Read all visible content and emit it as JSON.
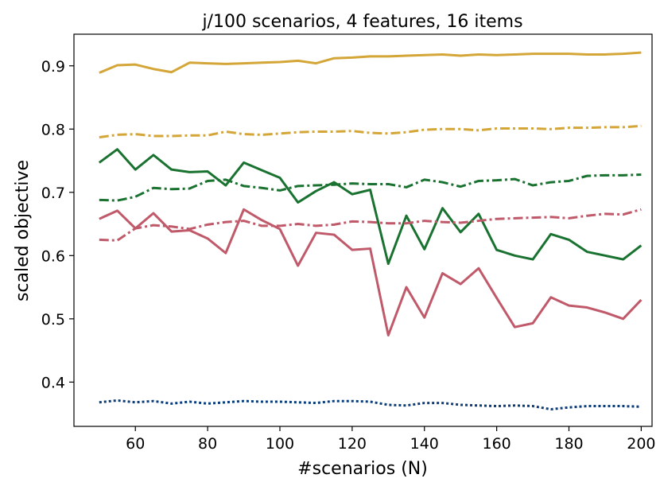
{
  "chart_data": {
    "type": "line",
    "title": "j/100 scenarios, 4 features, 16 items",
    "xlabel": "#scenarios (N)",
    "ylabel": "scaled objective",
    "xlim": [
      43,
      203
    ],
    "ylim": [
      0.33,
      0.95
    ],
    "xticks": [
      60,
      80,
      100,
      120,
      140,
      160,
      180,
      200
    ],
    "yticks": [
      0.4,
      0.5,
      0.6,
      0.7,
      0.8,
      0.9
    ],
    "grid": false,
    "x": [
      50,
      55,
      60,
      65,
      70,
      75,
      80,
      85,
      90,
      95,
      100,
      105,
      110,
      115,
      120,
      125,
      130,
      135,
      140,
      145,
      150,
      155,
      160,
      165,
      170,
      175,
      180,
      185,
      190,
      195,
      200
    ],
    "series": [
      {
        "color": "#d4a637",
        "style": "solid",
        "values": [
          0.889,
          0.901,
          0.902,
          0.895,
          0.89,
          0.905,
          0.904,
          0.903,
          0.904,
          0.905,
          0.906,
          0.908,
          0.904,
          0.912,
          0.913,
          0.915,
          0.915,
          0.916,
          0.917,
          0.918,
          0.916,
          0.918,
          0.917,
          0.918,
          0.919,
          0.919,
          0.919,
          0.918,
          0.918,
          0.919,
          0.921
        ]
      },
      {
        "color": "#d4a637",
        "style": "dashdot",
        "values": [
          0.787,
          0.791,
          0.792,
          0.789,
          0.789,
          0.79,
          0.79,
          0.796,
          0.792,
          0.791,
          0.793,
          0.795,
          0.796,
          0.796,
          0.797,
          0.794,
          0.793,
          0.795,
          0.799,
          0.8,
          0.8,
          0.798,
          0.801,
          0.801,
          0.801,
          0.8,
          0.802,
          0.802,
          0.803,
          0.803,
          0.805
        ]
      },
      {
        "color": "#1a7230",
        "style": "solid",
        "values": [
          0.747,
          0.768,
          0.736,
          0.759,
          0.736,
          0.732,
          0.733,
          0.711,
          0.747,
          0.735,
          0.723,
          0.684,
          0.702,
          0.716,
          0.697,
          0.704,
          0.587,
          0.663,
          0.61,
          0.675,
          0.637,
          0.666,
          0.609,
          0.6,
          0.594,
          0.634,
          0.625,
          0.606,
          0.6,
          0.594,
          0.616
        ]
      },
      {
        "color": "#1a7230",
        "style": "dashdot",
        "values": [
          0.688,
          0.687,
          0.693,
          0.707,
          0.705,
          0.706,
          0.718,
          0.72,
          0.71,
          0.707,
          0.703,
          0.71,
          0.711,
          0.712,
          0.714,
          0.713,
          0.713,
          0.708,
          0.72,
          0.716,
          0.709,
          0.718,
          0.719,
          0.721,
          0.711,
          0.716,
          0.718,
          0.726,
          0.727,
          0.727,
          0.728
        ]
      },
      {
        "color": "#c05a6a",
        "style": "solid",
        "values": [
          0.658,
          0.671,
          0.643,
          0.667,
          0.638,
          0.64,
          0.627,
          0.604,
          0.673,
          0.656,
          0.642,
          0.584,
          0.636,
          0.633,
          0.609,
          0.611,
          0.474,
          0.55,
          0.502,
          0.572,
          0.555,
          0.58,
          0.533,
          0.487,
          0.493,
          0.534,
          0.521,
          0.518,
          0.51,
          0.5,
          0.53
        ]
      },
      {
        "color": "#c05a6a",
        "style": "dashdot",
        "values": [
          0.625,
          0.624,
          0.643,
          0.648,
          0.646,
          0.642,
          0.649,
          0.653,
          0.655,
          0.647,
          0.647,
          0.65,
          0.647,
          0.649,
          0.654,
          0.653,
          0.651,
          0.651,
          0.655,
          0.653,
          0.652,
          0.655,
          0.658,
          0.659,
          0.66,
          0.661,
          0.659,
          0.663,
          0.666,
          0.665,
          0.673
        ]
      },
      {
        "color": "#0b3d7a",
        "style": "dotted",
        "values": [
          0.368,
          0.371,
          0.368,
          0.37,
          0.366,
          0.369,
          0.366,
          0.368,
          0.37,
          0.369,
          0.369,
          0.368,
          0.367,
          0.37,
          0.37,
          0.369,
          0.364,
          0.363,
          0.367,
          0.367,
          0.364,
          0.363,
          0.362,
          0.363,
          0.362,
          0.357,
          0.36,
          0.362,
          0.362,
          0.362,
          0.361
        ]
      }
    ]
  }
}
